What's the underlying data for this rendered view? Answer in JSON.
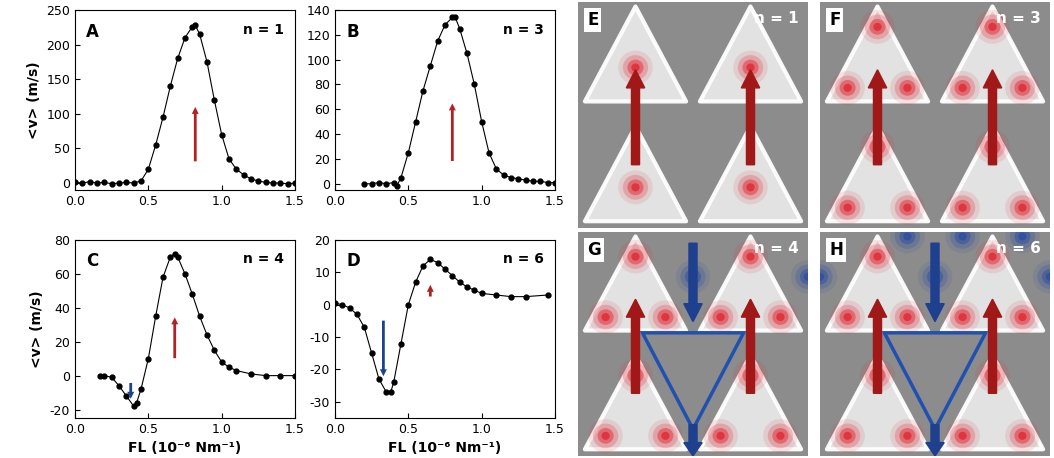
{
  "chart_data": [
    {
      "type": "line",
      "panel_label": "A",
      "annotation": "n = 1",
      "color": "#000000",
      "marker": "o",
      "line_style": "solid",
      "ylabel": "<v> (m/s)",
      "x": [
        0.0,
        0.05,
        0.1,
        0.15,
        0.2,
        0.25,
        0.3,
        0.35,
        0.4,
        0.45,
        0.5,
        0.55,
        0.6,
        0.65,
        0.7,
        0.75,
        0.8,
        0.82,
        0.85,
        0.9,
        0.95,
        1.0,
        1.05,
        1.1,
        1.15,
        1.2,
        1.25,
        1.3,
        1.35,
        1.4,
        1.45,
        1.5
      ],
      "values": [
        1,
        0,
        2,
        0,
        1,
        -1,
        0,
        1,
        0,
        3,
        20,
        55,
        95,
        140,
        180,
        210,
        226,
        228,
        215,
        175,
        120,
        70,
        35,
        20,
        12,
        6,
        3,
        1,
        0,
        0,
        -1,
        0
      ],
      "xlim": [
        0.0,
        1.5
      ],
      "ylim": [
        -10,
        250
      ],
      "xticks": [
        {
          "value": 0.0,
          "label": "0.0"
        },
        {
          "value": 0.5,
          "label": "0.5"
        },
        {
          "value": 1.0,
          "label": "1.0"
        },
        {
          "value": 1.5,
          "label": "1.5"
        }
      ],
      "yticks": [
        0,
        50,
        100,
        150,
        200,
        250
      ]
    },
    {
      "type": "line",
      "panel_label": "B",
      "annotation": "n = 3",
      "color": "#000000",
      "marker": "o",
      "line_style": "solid",
      "x": [
        0.2,
        0.25,
        0.3,
        0.35,
        0.4,
        0.42,
        0.45,
        0.5,
        0.55,
        0.6,
        0.65,
        0.7,
        0.75,
        0.8,
        0.82,
        0.85,
        0.9,
        0.95,
        1.0,
        1.05,
        1.1,
        1.15,
        1.2,
        1.25,
        1.3,
        1.35,
        1.4,
        1.45,
        1.5
      ],
      "values": [
        0,
        0,
        1,
        0,
        1,
        -2,
        5,
        25,
        50,
        75,
        95,
        115,
        128,
        134,
        134,
        125,
        105,
        80,
        50,
        25,
        12,
        7,
        5,
        4,
        3,
        2,
        2,
        1,
        1
      ],
      "xlim": [
        0.0,
        1.5
      ],
      "ylim": [
        -5,
        140
      ],
      "xticks": [
        {
          "value": 0.0,
          "label": "0.0"
        },
        {
          "value": 0.5,
          "label": "0.5"
        },
        {
          "value": 1.0,
          "label": "1.0"
        },
        {
          "value": 1.5,
          "label": "1.5"
        }
      ],
      "yticks": [
        0,
        20,
        40,
        60,
        80,
        100,
        120,
        140
      ]
    },
    {
      "type": "line",
      "panel_label": "C",
      "annotation": "n = 4",
      "color": "#000000",
      "marker": "o",
      "line_style": "solid",
      "xlabel": "FL (10⁻⁶ Nm⁻¹)",
      "ylabel": "<v> (m/s)",
      "x": [
        0.17,
        0.2,
        0.25,
        0.3,
        0.35,
        0.4,
        0.42,
        0.45,
        0.5,
        0.55,
        0.6,
        0.65,
        0.68,
        0.7,
        0.75,
        0.8,
        0.85,
        0.9,
        0.95,
        1.0,
        1.05,
        1.1,
        1.2,
        1.3,
        1.4,
        1.5
      ],
      "values": [
        0,
        0,
        -1,
        -6,
        -12,
        -18,
        -16,
        -8,
        10,
        35,
        58,
        70,
        72,
        70,
        60,
        48,
        35,
        24,
        15,
        8,
        5,
        3,
        1,
        0,
        0,
        0
      ],
      "xlim": [
        0.0,
        1.5
      ],
      "ylim": [
        -25,
        80
      ],
      "xticks": [
        {
          "value": 0.0,
          "label": "0.0"
        },
        {
          "value": 0.5,
          "label": "0.5"
        },
        {
          "value": 1.0,
          "label": "1.0"
        },
        {
          "value": 1.5,
          "label": "1.5"
        }
      ],
      "yticks": [
        -20,
        0,
        20,
        40,
        60,
        80
      ]
    },
    {
      "type": "line",
      "panel_label": "D",
      "annotation": "n = 6",
      "color": "#000000",
      "marker": "o",
      "line_style": "solid",
      "xlabel": "FL (10⁻⁶ Nm⁻¹)",
      "x": [
        0.0,
        0.05,
        0.1,
        0.15,
        0.2,
        0.25,
        0.3,
        0.35,
        0.38,
        0.4,
        0.45,
        0.5,
        0.55,
        0.6,
        0.65,
        0.7,
        0.75,
        0.8,
        0.85,
        0.9,
        0.95,
        1.0,
        1.1,
        1.2,
        1.3,
        1.45
      ],
      "values": [
        0.5,
        0,
        -1,
        -3,
        -7,
        -15,
        -23,
        -27,
        -27,
        -24,
        -12,
        0,
        7,
        12,
        14,
        13,
        11,
        9,
        7,
        5.5,
        4.5,
        3.5,
        3,
        2.5,
        2.5,
        3
      ],
      "xlim": [
        0.0,
        1.5
      ],
      "ylim": [
        -35,
        20
      ],
      "xticks": [
        {
          "value": 0.0,
          "label": "0.0"
        },
        {
          "value": 0.5,
          "label": "0.5"
        },
        {
          "value": 1.0,
          "label": "1.0"
        },
        {
          "value": 1.5,
          "label": "1.5"
        }
      ],
      "yticks": [
        -30,
        -20,
        -10,
        0,
        10,
        20
      ]
    }
  ],
  "images": [
    {
      "panel_label": "E",
      "annotation": "n = 1"
    },
    {
      "panel_label": "F",
      "annotation": "n = 3"
    },
    {
      "panel_label": "G",
      "annotation": "n = 4"
    },
    {
      "panel_label": "H",
      "annotation": "n = 6"
    }
  ]
}
